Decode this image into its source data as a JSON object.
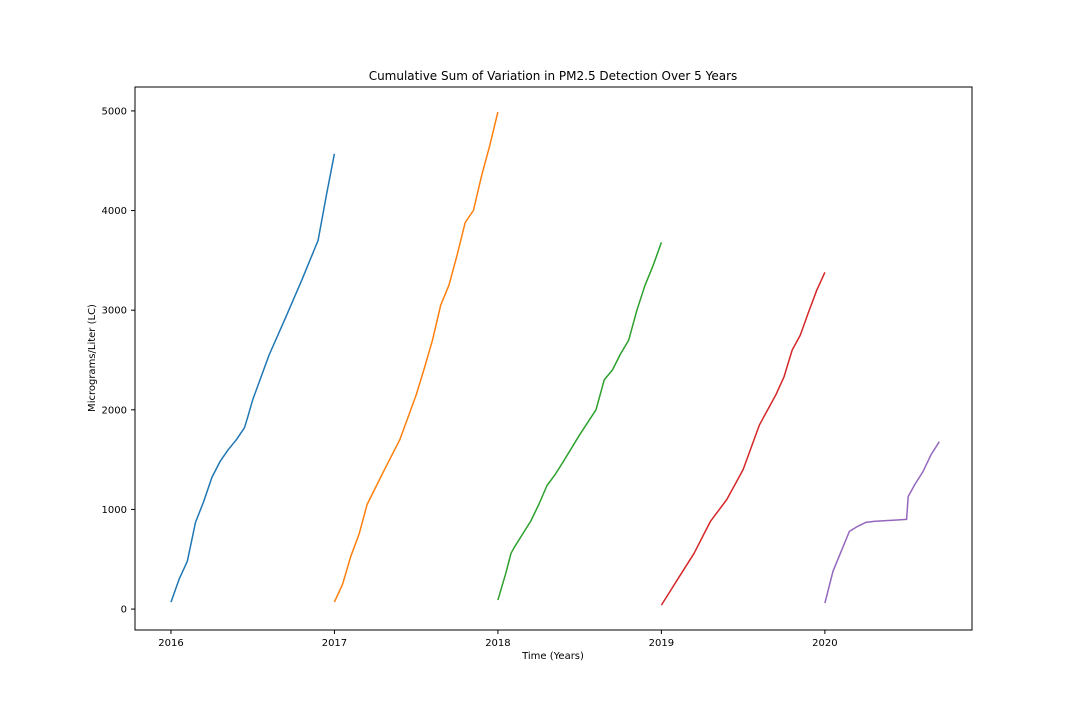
{
  "chart_data": {
    "type": "line",
    "title": "Cumulative Sum of Variation in PM2.5 Detection Over 5 Years",
    "xlabel": "Time (Years)",
    "ylabel": "Micrograms/Liter (LC)",
    "xlim": [
      2015.78,
      2020.9
    ],
    "ylim": [
      -210,
      5240
    ],
    "xticks": [
      2016,
      2017,
      2018,
      2019,
      2020
    ],
    "xtick_labels": [
      "2016",
      "2017",
      "2018",
      "2019",
      "2020"
    ],
    "yticks": [
      0,
      1000,
      2000,
      3000,
      4000,
      5000
    ],
    "ytick_labels": [
      "0",
      "1000",
      "2000",
      "3000",
      "4000",
      "5000"
    ],
    "grid": false,
    "legend": "none",
    "series": [
      {
        "color": "#1f77b4",
        "x": [
          2016.0,
          2016.05,
          2016.1,
          2016.15,
          2016.2,
          2016.25,
          2016.3,
          2016.35,
          2016.4,
          2016.45,
          2016.47,
          2016.5,
          2016.6,
          2016.7,
          2016.8,
          2016.9,
          2016.95,
          2017.0
        ],
        "y": [
          70,
          300,
          480,
          870,
          1080,
          1320,
          1480,
          1600,
          1700,
          1820,
          1930,
          2100,
          2550,
          2920,
          3300,
          3700,
          4150,
          4570
        ]
      },
      {
        "color": "#ff7f0e",
        "x": [
          2017.0,
          2017.05,
          2017.1,
          2017.15,
          2017.2,
          2017.3,
          2017.4,
          2017.5,
          2017.55,
          2017.6,
          2017.65,
          2017.7,
          2017.75,
          2017.8,
          2017.85,
          2017.9,
          2017.95,
          2018.0
        ],
        "y": [
          70,
          250,
          530,
          750,
          1050,
          1380,
          1700,
          2150,
          2420,
          2700,
          3050,
          3250,
          3550,
          3880,
          4000,
          4350,
          4650,
          4990
        ]
      },
      {
        "color": "#2ca02c",
        "x": [
          2018.0,
          2018.05,
          2018.08,
          2018.1,
          2018.15,
          2018.2,
          2018.25,
          2018.3,
          2018.35,
          2018.4,
          2018.5,
          2018.6,
          2018.65,
          2018.7,
          2018.75,
          2018.8,
          2018.85,
          2018.9,
          2018.95,
          2019.0
        ],
        "y": [
          90,
          370,
          560,
          620,
          750,
          880,
          1050,
          1240,
          1350,
          1480,
          1750,
          2000,
          2300,
          2400,
          2560,
          2700,
          3000,
          3250,
          3450,
          3680
        ]
      },
      {
        "color": "#d62728",
        "x": [
          2019.0,
          2019.05,
          2019.1,
          2019.2,
          2019.3,
          2019.4,
          2019.45,
          2019.5,
          2019.6,
          2019.7,
          2019.75,
          2019.8,
          2019.85,
          2019.9,
          2019.95,
          2020.0
        ],
        "y": [
          40,
          170,
          300,
          560,
          880,
          1100,
          1250,
          1400,
          1850,
          2150,
          2330,
          2600,
          2750,
          2980,
          3200,
          3380
        ]
      },
      {
        "color": "#9467bd",
        "x": [
          2020.0,
          2020.05,
          2020.1,
          2020.15,
          2020.2,
          2020.25,
          2020.3,
          2020.5,
          2020.51,
          2020.55,
          2020.6,
          2020.65,
          2020.7
        ],
        "y": [
          60,
          380,
          580,
          780,
          830,
          870,
          880,
          900,
          1130,
          1250,
          1380,
          1550,
          1680
        ]
      }
    ]
  }
}
